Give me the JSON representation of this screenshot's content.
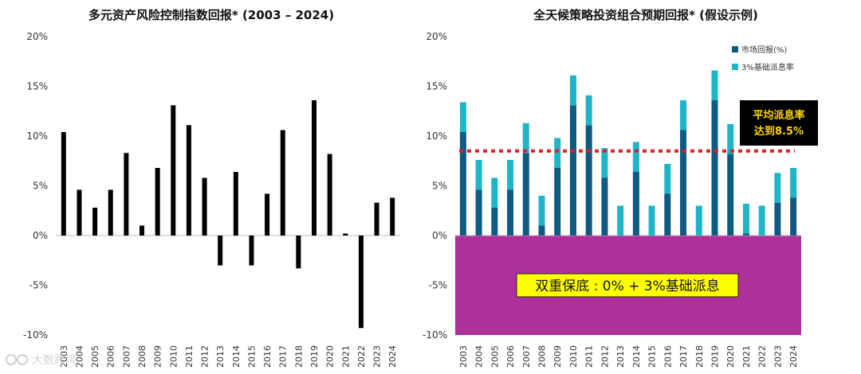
{
  "chart_data": [
    {
      "type": "bar",
      "title": "多元资产风险控制指数回报* (2003 – 2024)",
      "categories": [
        "2003",
        "2004",
        "2005",
        "2006",
        "2007",
        "2008",
        "2009",
        "2010",
        "2011",
        "2012",
        "2013",
        "2014",
        "2015",
        "2016",
        "2017",
        "2018",
        "2019",
        "2020",
        "2021",
        "2022",
        "2023",
        "2024"
      ],
      "values": [
        10.4,
        4.6,
        2.8,
        4.6,
        8.3,
        1.0,
        6.8,
        13.1,
        11.1,
        5.8,
        -3.0,
        6.4,
        -3.0,
        4.2,
        10.6,
        -3.3,
        13.6,
        8.2,
        0.2,
        -9.3,
        3.3,
        3.8
      ],
      "ylim": [
        -10,
        20
      ],
      "yticks": [
        "20%",
        "15%",
        "10%",
        "5%",
        "0%",
        "-5%",
        "-10%"
      ],
      "xlabel": "",
      "ylabel": "",
      "grid": false
    },
    {
      "type": "bar",
      "stacked": true,
      "title": "全天候策略投资组合预期回报* (假设示例)",
      "categories": [
        "2003",
        "2004",
        "2005",
        "2006",
        "2007",
        "2008",
        "2009",
        "2010",
        "2011",
        "2012",
        "2013",
        "2014",
        "2015",
        "2016",
        "2017",
        "2018",
        "2019",
        "2020",
        "2021",
        "2022",
        "2023",
        "2024"
      ],
      "series": [
        {
          "name": "市场回报(%)",
          "color": "#0e5a80",
          "values": [
            10.4,
            4.6,
            2.8,
            4.6,
            8.3,
            1.0,
            6.8,
            13.1,
            11.1,
            5.8,
            0,
            6.4,
            0,
            4.2,
            10.6,
            0,
            13.6,
            8.2,
            0.2,
            0,
            3.3,
            3.8
          ]
        },
        {
          "name": "3%基础派息率",
          "color": "#1fb5c8",
          "values": [
            3,
            3,
            3,
            3,
            3,
            3,
            3,
            3,
            3,
            3,
            3,
            3,
            3,
            3,
            3,
            3,
            3,
            3,
            3,
            3,
            3,
            3
          ]
        }
      ],
      "average_line": {
        "value": 8.5,
        "label_line1": "平均派息率",
        "label_line2": "达到8.5%",
        "color": "#e02020"
      },
      "floor_box": {
        "label": "双重保底 : 0% + 3%基础派息",
        "color": "#b0309a"
      },
      "ylim": [
        -10,
        20
      ],
      "yticks": [
        "20%",
        "15%",
        "10%",
        "5%",
        "0%",
        "-5%",
        "-10%"
      ],
      "xlabel": "",
      "ylabel": "",
      "grid": false
    }
  ],
  "watermark": "大数跨境"
}
